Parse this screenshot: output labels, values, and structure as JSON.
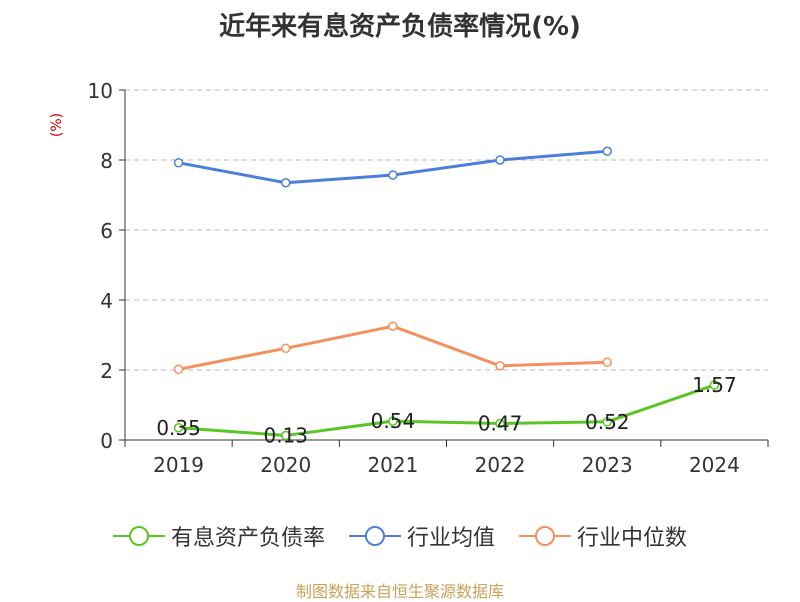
{
  "chart_data": {
    "type": "line",
    "title": "近年来有息资产负债率情况(%)",
    "ylabel": "(%)",
    "xlabel": "",
    "categories": [
      "2019",
      "2020",
      "2021",
      "2022",
      "2023",
      "2024"
    ],
    "ylim": [
      0,
      10
    ],
    "yticks": [
      0,
      2,
      4,
      6,
      8,
      10
    ],
    "grid": true,
    "legend_position": "bottom",
    "series": [
      {
        "name": "有息资产负债率",
        "color": "#5ac626",
        "values": [
          0.35,
          0.13,
          0.54,
          0.47,
          0.52,
          1.57
        ],
        "labels": [
          "0.35",
          "0.13",
          "0.54",
          "0.47",
          "0.52",
          "1.57"
        ]
      },
      {
        "name": "行业均值",
        "color": "#4a7fdc",
        "values": [
          7.92,
          7.35,
          7.57,
          8.0,
          8.25,
          null
        ]
      },
      {
        "name": "行业中位数",
        "color": "#f5905c",
        "values": [
          2.02,
          2.62,
          3.25,
          2.12,
          2.22,
          null
        ]
      }
    ]
  },
  "source": "制图数据来自恒生聚源数据库"
}
